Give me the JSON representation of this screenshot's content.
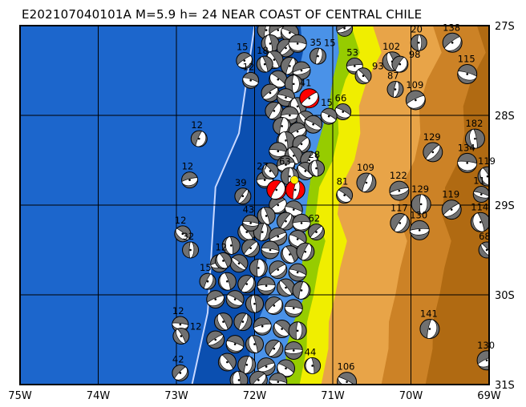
{
  "title": "E202107040101A M=5.9 h= 24 NEAR COAST OF CENTRAL CHILE",
  "map": {
    "lon_range": [
      -75,
      -69
    ],
    "lat_range": [
      -27,
      -31
    ],
    "lon_ticks": [
      "75W",
      "74W",
      "73W",
      "72W",
      "71W",
      "70W",
      "69W"
    ],
    "lat_ticks": [
      "27S",
      "28S",
      "29S",
      "30S",
      "31S"
    ],
    "colors": {
      "ocean": "#1c66cc",
      "ocean_deep": "#0b4fb0",
      "shelf": "#4a92e8",
      "coast_green": "#96cc00",
      "lowland_yellow": "#f0ee00",
      "hills": "#e8a448",
      "mountains": "#cc8226",
      "high_mountains": "#b06a12",
      "trench_line": "#c8d8ff",
      "beachball_gray": "#707070",
      "target_event": "#ff0000",
      "epicenter_marker": "#ffee00"
    },
    "coastline": [
      [
        -70.95,
        -27.0
      ],
      [
        -70.92,
        -27.3
      ],
      [
        -71.0,
        -27.6
      ],
      [
        -71.05,
        -27.9
      ],
      [
        -71.15,
        -28.2
      ],
      [
        -71.25,
        -28.5
      ],
      [
        -71.3,
        -28.8
      ],
      [
        -71.35,
        -29.1
      ],
      [
        -71.35,
        -29.4
      ],
      [
        -71.4,
        -29.7
      ],
      [
        -71.35,
        -30.0
      ],
      [
        -71.5,
        -30.3
      ],
      [
        -71.6,
        -30.6
      ],
      [
        -71.6,
        -31.0
      ]
    ],
    "trench": [
      [
        -72.0,
        -27.0
      ],
      [
        -72.1,
        -27.6
      ],
      [
        -72.2,
        -28.2
      ],
      [
        -72.5,
        -28.8
      ],
      [
        -72.55,
        -29.5
      ],
      [
        -72.6,
        -30.2
      ],
      [
        -72.8,
        -31.0
      ]
    ]
  },
  "events": [
    {
      "lon": -69.9,
      "lat": -27.19,
      "depth": "20"
    },
    {
      "lon": -69.47,
      "lat": -27.19,
      "depth": "138"
    },
    {
      "lon": -69.28,
      "lat": -27.54,
      "depth": "115"
    },
    {
      "lon": -70.24,
      "lat": -27.4,
      "depth": "102"
    },
    {
      "lon": -70.14,
      "lat": -27.43,
      "depth": "98"
    },
    {
      "lon": -70.72,
      "lat": -27.45,
      "depth": "53"
    },
    {
      "lon": -70.61,
      "lat": -27.56,
      "depth": "93"
    },
    {
      "lon": -70.2,
      "lat": -27.71,
      "depth": "87"
    },
    {
      "lon": -69.94,
      "lat": -27.83,
      "depth": "109"
    },
    {
      "lon": -70.87,
      "lat": -27.96,
      "depth": "66"
    },
    {
      "lon": -69.18,
      "lat": -28.26,
      "depth": "182"
    },
    {
      "lon": -69.72,
      "lat": -28.41,
      "depth": "129"
    },
    {
      "lon": -69.28,
      "lat": -28.53,
      "depth": "134"
    },
    {
      "lon": -69.02,
      "lat": -28.68,
      "depth": "119"
    },
    {
      "lon": -70.57,
      "lat": -28.75,
      "depth": "109"
    },
    {
      "lon": -70.15,
      "lat": -28.84,
      "depth": "122"
    },
    {
      "lon": -70.85,
      "lat": -28.89,
      "depth": "81"
    },
    {
      "lon": -69.87,
      "lat": -28.99,
      "depth": "129"
    },
    {
      "lon": -69.48,
      "lat": -29.05,
      "depth": "119"
    },
    {
      "lon": -69.1,
      "lat": -28.88,
      "depth": "11"
    },
    {
      "lon": -69.11,
      "lat": -29.19,
      "depth": "114"
    },
    {
      "lon": -70.14,
      "lat": -29.2,
      "depth": "117"
    },
    {
      "lon": -69.89,
      "lat": -29.28,
      "depth": "130"
    },
    {
      "lon": -69.03,
      "lat": -29.5,
      "depth": "68"
    },
    {
      "lon": -69.76,
      "lat": -30.38,
      "depth": "141"
    },
    {
      "lon": -69.03,
      "lat": -30.73,
      "depth": "130"
    },
    {
      "lon": -70.82,
      "lat": -30.97,
      "depth": "106"
    },
    {
      "lon": -71.26,
      "lat": -30.79,
      "depth": "44"
    },
    {
      "lon": -72.95,
      "lat": -30.87,
      "depth": "42"
    },
    {
      "lon": -72.95,
      "lat": -30.33,
      "depth": "12"
    },
    {
      "lon": -72.94,
      "lat": -30.46,
      "depth": "12"
    },
    {
      "lon": -72.71,
      "lat": -28.26,
      "depth": "12"
    },
    {
      "lon": -72.83,
      "lat": -28.72,
      "depth": "12"
    },
    {
      "lon": -72.92,
      "lat": -29.32,
      "depth": "12"
    },
    {
      "lon": -72.82,
      "lat": -29.5,
      "depth": "32"
    },
    {
      "lon": -72.13,
      "lat": -27.39,
      "depth": "15"
    },
    {
      "lon": -72.05,
      "lat": -27.61,
      "depth": "12"
    },
    {
      "lon": -71.87,
      "lat": -27.43,
      "depth": "18"
    },
    {
      "lon": -72.15,
      "lat": -28.9,
      "depth": "39"
    },
    {
      "lon": -71.87,
      "lat": -28.72,
      "depth": "27"
    },
    {
      "lon": -71.8,
      "lat": -28.62,
      "depth": "63"
    },
    {
      "lon": -71.19,
      "lat": -27.34,
      "depth": "35"
    },
    {
      "lon": -70.85,
      "lat": -27.03,
      "depth": "15"
    },
    {
      "lon": -71.05,
      "lat": -28.01,
      "depth": "15"
    },
    {
      "lon": -71.21,
      "lat": -28.59,
      "depth": "28"
    },
    {
      "lon": -71.21,
      "lat": -29.3,
      "depth": "62"
    },
    {
      "lon": -72.05,
      "lat": -29.2,
      "depth": "43"
    },
    {
      "lon": -72.4,
      "lat": -29.62,
      "depth": "12"
    },
    {
      "lon": -72.6,
      "lat": -29.85,
      "depth": "15"
    }
  ],
  "target_events": [
    {
      "lon": -71.3,
      "lat": -27.81,
      "depth": "41"
    },
    {
      "lon": -71.72,
      "lat": -28.83,
      "depth": ""
    },
    {
      "lon": -71.48,
      "lat": -28.83,
      "depth": ""
    }
  ],
  "epicenter": {
    "lon": -71.49,
    "lat": -28.72
  },
  "cluster_events": [
    [
      -71.85,
      -27.05
    ],
    [
      -71.7,
      -27.05
    ],
    [
      -71.55,
      -27.08
    ],
    [
      -71.8,
      -27.2
    ],
    [
      -71.6,
      -27.25
    ],
    [
      -71.45,
      -27.2
    ],
    [
      -71.75,
      -27.38
    ],
    [
      -71.55,
      -27.45
    ],
    [
      -71.4,
      -27.5
    ],
    [
      -71.7,
      -27.6
    ],
    [
      -71.5,
      -27.65
    ],
    [
      -71.8,
      -27.75
    ],
    [
      -71.6,
      -27.8
    ],
    [
      -71.45,
      -27.9
    ],
    [
      -71.75,
      -27.95
    ],
    [
      -71.55,
      -28.0
    ],
    [
      -71.35,
      -28.05
    ],
    [
      -71.65,
      -28.12
    ],
    [
      -71.45,
      -28.18
    ],
    [
      -71.25,
      -28.1
    ],
    [
      -71.6,
      -28.28
    ],
    [
      -71.4,
      -28.32
    ],
    [
      -71.7,
      -28.4
    ],
    [
      -71.5,
      -28.45
    ],
    [
      -71.3,
      -28.5
    ],
    [
      -71.6,
      -28.55
    ],
    [
      -71.35,
      -28.62
    ],
    [
      -71.55,
      -28.68
    ],
    [
      -71.7,
      -29.0
    ],
    [
      -71.5,
      -29.05
    ],
    [
      -71.85,
      -29.12
    ],
    [
      -71.6,
      -29.18
    ],
    [
      -71.4,
      -29.2
    ],
    [
      -72.1,
      -29.3
    ],
    [
      -71.9,
      -29.3
    ],
    [
      -71.7,
      -29.35
    ],
    [
      -71.45,
      -29.38
    ],
    [
      -72.3,
      -29.45
    ],
    [
      -72.05,
      -29.48
    ],
    [
      -71.8,
      -29.5
    ],
    [
      -71.55,
      -29.55
    ],
    [
      -71.35,
      -29.52
    ],
    [
      -72.45,
      -29.65
    ],
    [
      -72.2,
      -29.65
    ],
    [
      -71.95,
      -29.7
    ],
    [
      -71.7,
      -29.72
    ],
    [
      -71.45,
      -29.75
    ],
    [
      -72.35,
      -29.85
    ],
    [
      -72.1,
      -29.88
    ],
    [
      -71.85,
      -29.9
    ],
    [
      -71.6,
      -29.92
    ],
    [
      -71.4,
      -29.95
    ],
    [
      -72.5,
      -30.05
    ],
    [
      -72.25,
      -30.05
    ],
    [
      -72.0,
      -30.1
    ],
    [
      -71.75,
      -30.12
    ],
    [
      -71.5,
      -30.15
    ],
    [
      -72.4,
      -30.3
    ],
    [
      -72.15,
      -30.3
    ],
    [
      -71.9,
      -30.35
    ],
    [
      -71.65,
      -30.38
    ],
    [
      -71.45,
      -30.4
    ],
    [
      -72.5,
      -30.5
    ],
    [
      -72.25,
      -30.55
    ],
    [
      -72.0,
      -30.55
    ],
    [
      -71.75,
      -30.6
    ],
    [
      -71.5,
      -30.62
    ],
    [
      -72.35,
      -30.75
    ],
    [
      -72.1,
      -30.78
    ],
    [
      -71.85,
      -30.8
    ],
    [
      -71.6,
      -30.82
    ],
    [
      -72.2,
      -30.95
    ],
    [
      -71.95,
      -30.95
    ],
    [
      -71.7,
      -30.97
    ]
  ]
}
